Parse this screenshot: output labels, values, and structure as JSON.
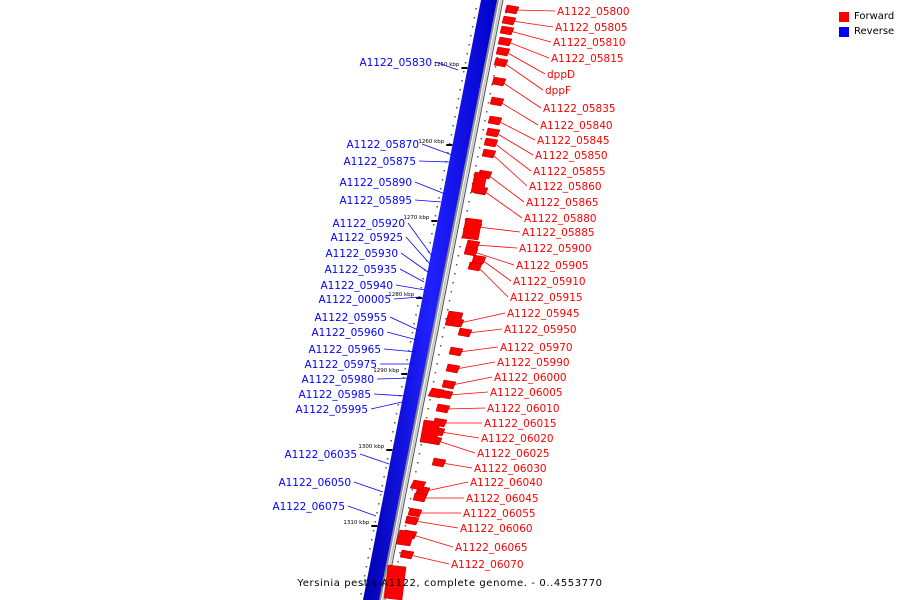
{
  "legend": [
    {
      "label": "Forward",
      "color": "#ff0000"
    },
    {
      "label": "Reverse",
      "color": "#0000ff"
    }
  ],
  "caption": "Yersinia pestis A1122, complete genome. - 0..4553770",
  "scale_ticks": [
    "1250 kbp",
    "1260 kbp",
    "1270 kbp",
    "1280 kbp",
    "1290 kbp",
    "1300 kbp",
    "1310 kbp"
  ],
  "forward_genes": [
    "A1122_05800",
    "A1122_05805",
    "A1122_05810",
    "A1122_05815",
    "dppD",
    "dppF",
    "A1122_05835",
    "A1122_05840",
    "A1122_05845",
    "A1122_05850",
    "A1122_05855",
    "A1122_05860",
    "A1122_05865",
    "A1122_05880",
    "A1122_05885",
    "A1122_05900",
    "A1122_05905",
    "A1122_05910",
    "A1122_05915",
    "A1122_05945",
    "A1122_05950",
    "A1122_05970",
    "A1122_05990",
    "A1122_06000",
    "A1122_06005",
    "A1122_06010",
    "A1122_06015",
    "A1122_06020",
    "A1122_06025",
    "A1122_06030",
    "A1122_06040",
    "A1122_06045",
    "A1122_06055",
    "A1122_06060",
    "A1122_06065",
    "A1122_06070"
  ],
  "reverse_genes": [
    "A1122_05830",
    "A1122_05870",
    "A1122_05875",
    "A1122_05890",
    "A1122_05895",
    "A1122_05920",
    "A1122_05925",
    "A1122_05930",
    "A1122_05935",
    "A1122_05940",
    "A1122_00005",
    "A1122_05955",
    "A1122_05960",
    "A1122_05965",
    "A1122_05975",
    "A1122_05980",
    "A1122_05985",
    "A1122_05995",
    "A1122_06035",
    "A1122_06050",
    "A1122_06075"
  ]
}
